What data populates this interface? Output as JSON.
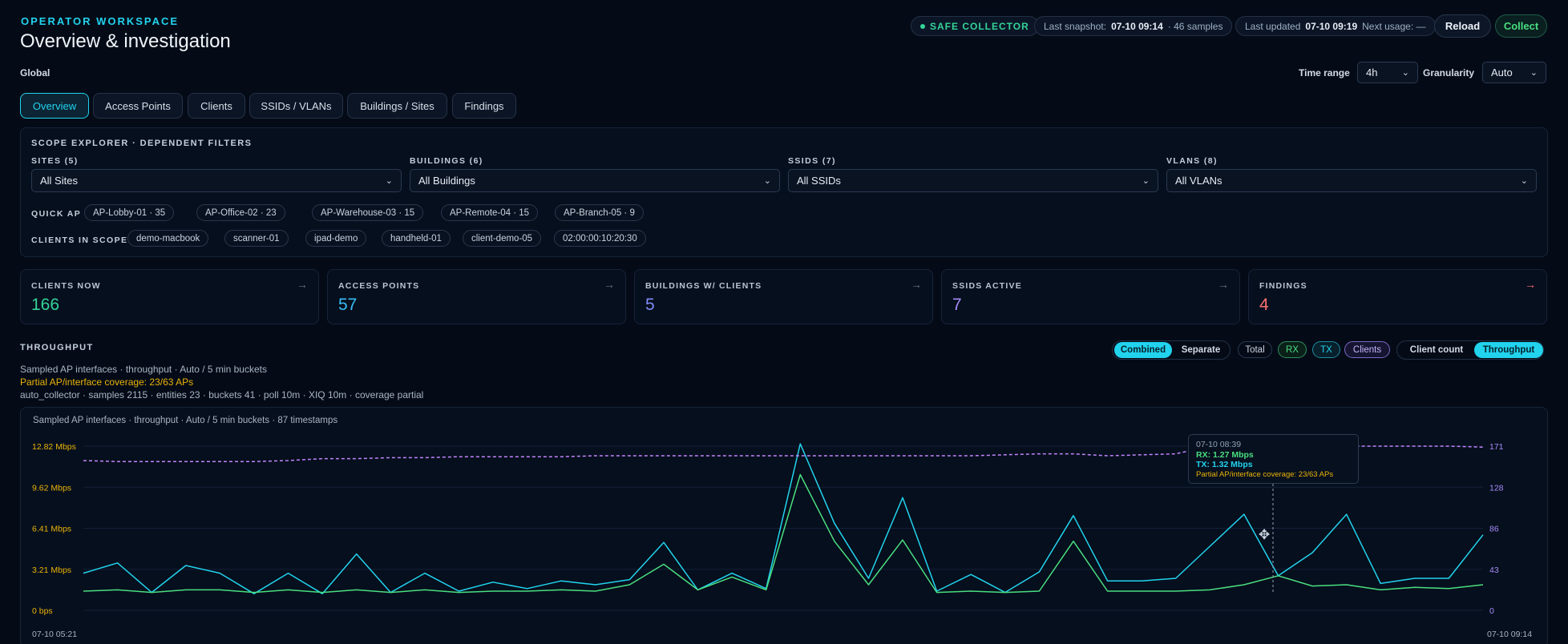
{
  "header": {
    "eyebrow": "OPERATOR WORKSPACE",
    "title": "Overview & investigation",
    "scope_label": "Global"
  },
  "status": {
    "collector_badge": "SAFE COLLECTOR",
    "last_snapshot_label": "Last snapshot:",
    "last_snapshot_value": "07-10 09:14",
    "last_snapshot_samples": "· 46 samples",
    "last_updated_label": "Last updated",
    "last_updated_value": "07-10 09:19",
    "next_usage": "Next usage: —",
    "reload_label": "Reload",
    "collect_label": "Collect"
  },
  "controls": {
    "time_range_label": "Time range",
    "time_range_value": "4h",
    "granularity_label": "Granularity",
    "granularity_value": "Auto"
  },
  "tabs": [
    {
      "label": "Overview",
      "active": true
    },
    {
      "label": "Access Points",
      "active": false
    },
    {
      "label": "Clients",
      "active": false
    },
    {
      "label": "SSIDs / VLANs",
      "active": false
    },
    {
      "label": "Buildings / Sites",
      "active": false
    },
    {
      "label": "Findings",
      "active": false
    }
  ],
  "scope": {
    "title": "SCOPE EXPLORER · DEPENDENT FILTERS",
    "filters": [
      {
        "label": "SITES (5)",
        "value": "All Sites"
      },
      {
        "label": "BUILDINGS (6)",
        "value": "All Buildings"
      },
      {
        "label": "SSIDS (7)",
        "value": "All SSIDs"
      },
      {
        "label": "VLANS (8)",
        "value": "All VLANs"
      }
    ],
    "quick_ap_label": "QUICK AP",
    "quick_ap": [
      "AP-Lobby-01 · 35",
      "AP-Office-02 · 23",
      "AP-Warehouse-03 · 15",
      "AP-Remote-04 · 15",
      "AP-Branch-05 · 9"
    ],
    "clients_label": "CLIENTS IN SCOPE",
    "clients": [
      "demo-macbook",
      "scanner-01",
      "ipad-demo",
      "handheld-01",
      "client-demo-05",
      "02:00:00:10:20:30"
    ]
  },
  "kpis": [
    {
      "label": "CLIENTS NOW",
      "value": "166",
      "color": "#34d399"
    },
    {
      "label": "ACCESS POINTS",
      "value": "57",
      "color": "#38bdf8"
    },
    {
      "label": "BUILDINGS W/ CLIENTS",
      "value": "5",
      "color": "#818cf8"
    },
    {
      "label": "SSIDS ACTIVE",
      "value": "7",
      "color": "#a78bfa"
    },
    {
      "label": "FINDINGS",
      "value": "4",
      "color": "#f87171"
    }
  ],
  "throughput": {
    "title": "THROUGHPUT",
    "meta1": "Sampled AP interfaces · throughput · Auto / 5 min buckets",
    "meta2": "Partial AP/interface coverage: 23/63 APs",
    "meta3": "auto_collector · samples 2115 · entities 23 · buckets 41 · poll 10m · XIQ 10m · coverage partial",
    "mode_combined": "Combined",
    "mode_separate": "Separate",
    "legend_total": "Total",
    "legend_rx": "RX",
    "legend_tx": "TX",
    "legend_clients": "Clients",
    "metric_client_count": "Client count",
    "metric_throughput": "Throughput",
    "chart_caption": "Sampled AP interfaces · throughput · Auto / 5 min buckets · 87 timestamps",
    "tooltip": {
      "time": "07-10 08:39",
      "rx": "RX: 1.27 Mbps",
      "tx": "TX: 1.32 Mbps",
      "coverage": "Partial AP/interface coverage: 23/63 APs"
    }
  },
  "colors": {
    "accent": "#22d3ee",
    "rx": "#4ade80",
    "tx": "#22d3ee",
    "clients": "#c084fc",
    "left_axis": "#eab308",
    "right_axis": "#a78bfa"
  },
  "chart_data": {
    "type": "line",
    "title": "",
    "x_start": "07-10 05:21",
    "x_end": "07-10 09:14",
    "y_left_ticks": [
      "0 bps",
      "3.21 Mbps",
      "6.41 Mbps",
      "9.62 Mbps",
      "12.82 Mbps"
    ],
    "y_left_lim": [
      0,
      12.82
    ],
    "y_right_ticks": [
      "0",
      "43",
      "86",
      "128",
      "171"
    ],
    "y_right_lim": [
      0,
      171
    ],
    "grid": true,
    "series": [
      {
        "name": "TX",
        "axis": "left",
        "unit": "Mbps",
        "values": [
          2.9,
          3.7,
          1.4,
          3.5,
          2.9,
          1.3,
          2.9,
          1.3,
          4.4,
          1.4,
          2.9,
          1.5,
          2.2,
          1.7,
          2.3,
          2.0,
          2.4,
          5.3,
          1.6,
          2.9,
          1.7,
          13.0,
          6.8,
          2.5,
          8.8,
          1.5,
          2.8,
          1.4,
          3.0,
          7.4,
          2.3,
          2.3,
          2.5,
          5.0,
          7.5,
          2.7,
          4.5,
          7.5,
          2.1,
          2.5,
          2.5,
          5.9
        ]
      },
      {
        "name": "RX",
        "axis": "left",
        "unit": "Mbps",
        "values": [
          1.5,
          1.6,
          1.4,
          1.6,
          1.6,
          1.4,
          1.6,
          1.4,
          1.6,
          1.4,
          1.6,
          1.4,
          1.5,
          1.5,
          1.6,
          1.5,
          2.0,
          3.6,
          1.6,
          2.6,
          1.6,
          10.6,
          5.4,
          2.0,
          5.5,
          1.4,
          1.5,
          1.4,
          1.5,
          5.4,
          1.5,
          1.5,
          1.5,
          1.6,
          2.0,
          2.7,
          1.9,
          2.0,
          1.6,
          1.8,
          1.7,
          2.0
        ]
      },
      {
        "name": "Clients",
        "axis": "right",
        "unit": "count",
        "values": [
          156,
          155,
          155,
          155,
          155,
          155,
          156,
          158,
          158,
          159,
          159,
          160,
          160,
          160,
          160,
          161,
          161,
          161,
          161,
          161,
          161,
          161,
          161,
          161,
          161,
          161,
          161,
          162,
          163,
          163,
          161,
          162,
          163,
          171,
          170,
          170,
          171,
          171,
          171,
          171,
          171,
          170
        ]
      }
    ]
  }
}
